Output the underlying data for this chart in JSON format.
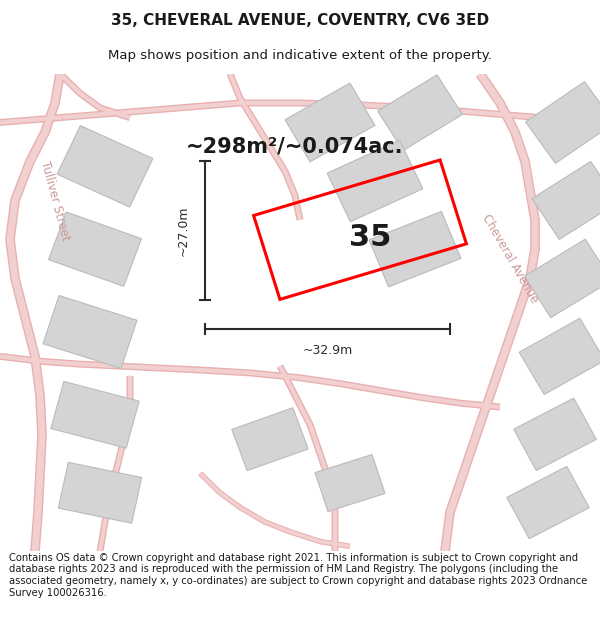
{
  "title_line1": "35, CHEVERAL AVENUE, COVENTRY, CV6 3ED",
  "title_line2": "Map shows position and indicative extent of the property.",
  "area_text": "~298m²/~0.074ac.",
  "label_35": "35",
  "dim_width": "~32.9m",
  "dim_height": "~27.0m",
  "street_label": "Cheveral Avenue",
  "street_label2": "Tulliver Street",
  "footer_text": "Contains OS data © Crown copyright and database right 2021. This information is subject to Crown copyright and database rights 2023 and is reproduced with the permission of HM Land Registry. The polygons (including the associated geometry, namely x, y co-ordinates) are subject to Crown copyright and database rights 2023 Ordnance Survey 100026316.",
  "bg_color": "#ffffff",
  "map_bg": "#f5f5f5",
  "road_fill": "#f2d0d0",
  "road_edge": "#e8b0b0",
  "building_fill": "#d4d4d4",
  "building_edge": "#bbbbbb",
  "highlight_color": "#ff0000",
  "text_color": "#1a1a1a",
  "dim_color": "#2a2a2a",
  "street_color": "#cc9999",
  "title_fontsize": 11,
  "subtitle_fontsize": 9.5,
  "area_fontsize": 15,
  "label_fontsize": 22,
  "street_fontsize": 8.5,
  "footer_fontsize": 7.2,
  "road_lw_outer": 6,
  "road_lw_inner": 4
}
